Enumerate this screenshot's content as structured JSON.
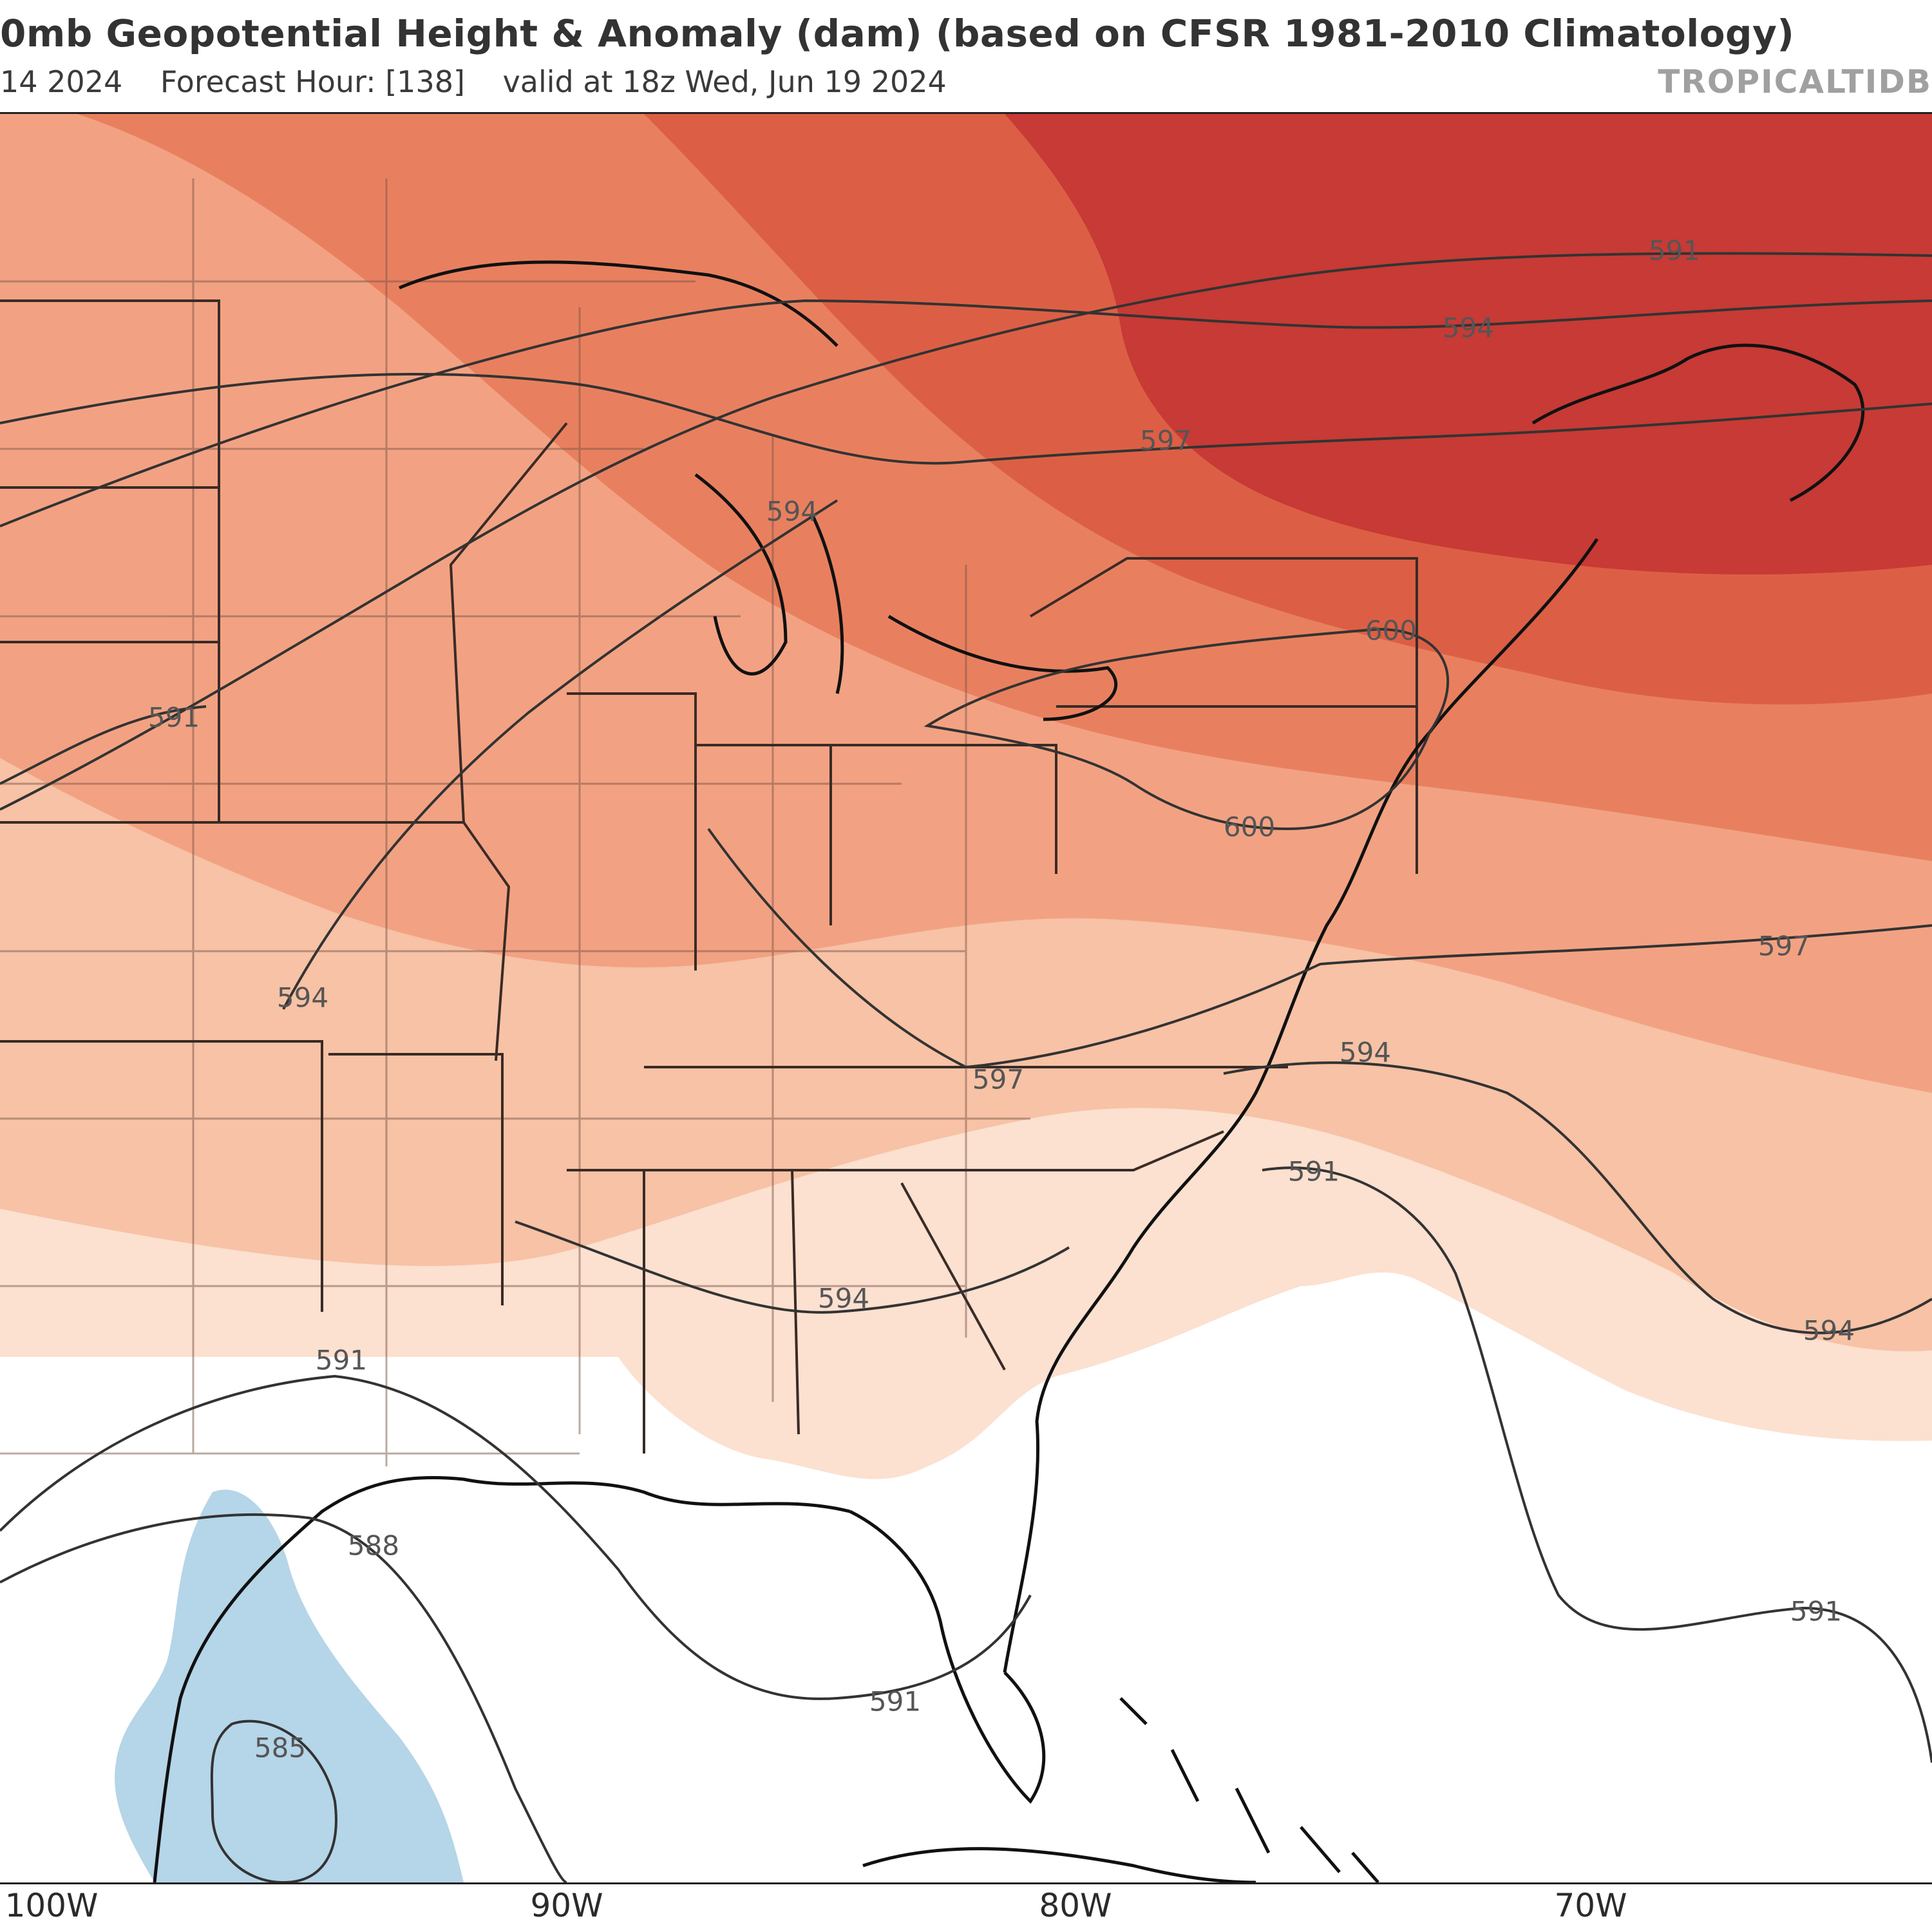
{
  "header": {
    "title": "0mb Geopotential Height & Anomaly (dam) (based on CFSR 1981-2010 Climatology)",
    "init_date": "14 2024",
    "forecast_hour": "Forecast Hour: [138]",
    "valid_time": "valid at 18z Wed, Jun 19 2024",
    "credit": "TROPICALTIDB"
  },
  "map": {
    "region": "Eastern United States, Gulf of Mexico and western Atlantic",
    "variable": "500mb geopotential height (dam) with anomaly shading",
    "colors": {
      "anomaly_pos_1": "#fce0d0",
      "anomaly_pos_2": "#f7c2a5",
      "anomaly_pos_3": "#f2a282",
      "anomaly_pos_4": "#e8805f",
      "anomaly_pos_5": "#dc5f45",
      "anomaly_pos_6": "#c73a35",
      "anomaly_neg_1": "#b5d5e8",
      "contour": "#333333",
      "coastline": "#111111"
    },
    "longitude_labels": [
      "100W",
      "90W",
      "80W",
      "70W"
    ],
    "contour_labels": [
      {
        "value": "591"
      },
      {
        "value": "594"
      },
      {
        "value": "597"
      },
      {
        "value": "594"
      },
      {
        "value": "600"
      },
      {
        "value": "600"
      },
      {
        "value": "591"
      },
      {
        "value": "594"
      },
      {
        "value": "597"
      },
      {
        "value": "594"
      },
      {
        "value": "597"
      },
      {
        "value": "591"
      },
      {
        "value": "594"
      },
      {
        "value": "591"
      },
      {
        "value": "594"
      },
      {
        "value": "588"
      },
      {
        "value": "591"
      },
      {
        "value": "591"
      },
      {
        "value": "585"
      }
    ]
  }
}
